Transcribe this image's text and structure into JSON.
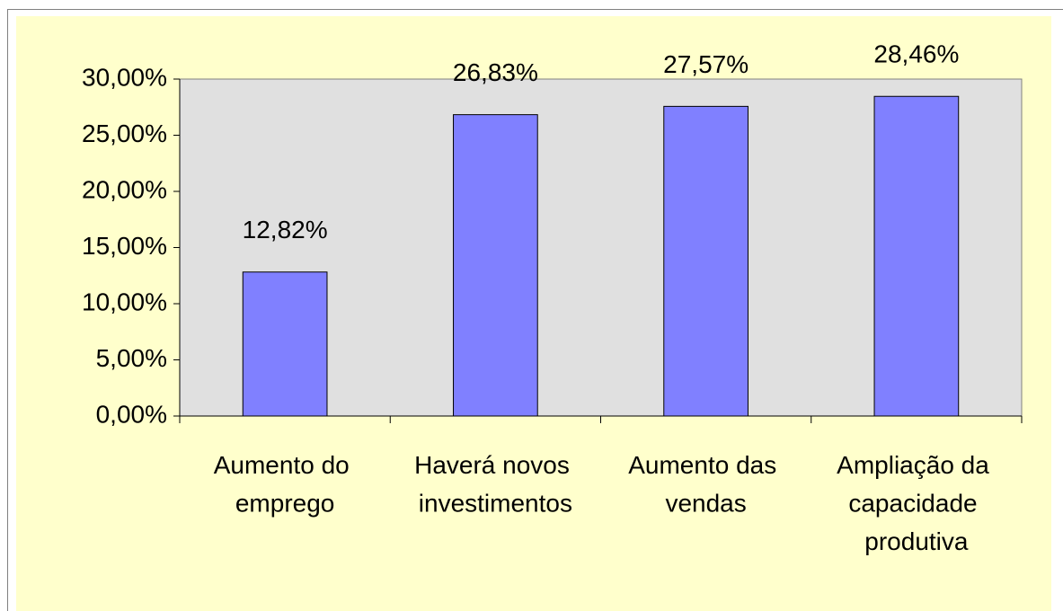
{
  "chart_data": {
    "type": "bar",
    "categories": [
      "Aumento do emprego",
      "Haverá novos investimentos",
      "Aumento das vendas",
      "Ampliação da capacidade produtiva"
    ],
    "values": [
      12.82,
      26.83,
      27.57,
      28.46
    ],
    "value_labels": [
      "12,82%",
      "26,83%",
      "27,57%",
      "28,46%"
    ],
    "color": "#8080ff",
    "ylim": [
      0,
      30
    ],
    "yticks": [
      {
        "value": 0,
        "label": "0,00%"
      },
      {
        "value": 5,
        "label": "5,00%"
      },
      {
        "value": 10,
        "label": "10,00%"
      },
      {
        "value": 15,
        "label": "15,00%"
      },
      {
        "value": 20,
        "label": "20,00%"
      },
      {
        "value": 25,
        "label": "25,00%"
      },
      {
        "value": 30,
        "label": "30,00%"
      }
    ]
  }
}
